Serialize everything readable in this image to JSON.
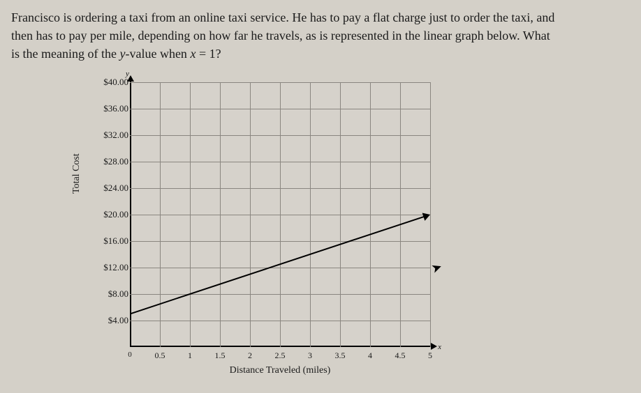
{
  "question": {
    "line1": "Francisco is ordering a taxi from an online taxi service. He has to pay a flat charge just to order the taxi, and",
    "line2": "then has to pay per mile, depending on how far he travels, as is represented in the linear graph below. What",
    "line3_a": "is the meaning of the ",
    "line3_yvar": "y",
    "line3_b": "-value when ",
    "line3_xvar": "x",
    "line3_c": " = 1?"
  },
  "chart": {
    "type": "line",
    "x_axis_title": "Distance Traveled (miles)",
    "y_axis_title": "Total Cost",
    "y_top_symbol": "y",
    "x_right_symbol": "x",
    "origin_label": "0",
    "xlim": [
      0,
      5
    ],
    "ylim": [
      0,
      40
    ],
    "xticks": [
      0.5,
      1,
      1.5,
      2,
      2.5,
      3,
      3.5,
      4,
      4.5,
      5
    ],
    "xtick_labels": [
      "0.5",
      "1",
      "1.5",
      "2",
      "2.5",
      "3",
      "3.5",
      "4",
      "4.5",
      "5"
    ],
    "yticks": [
      4,
      8,
      12,
      16,
      20,
      24,
      28,
      32,
      36,
      40
    ],
    "ytick_labels": [
      "$4.00",
      "$8.00",
      "$12.00",
      "$16.00",
      "$20.00",
      "$24.00",
      "$28.00",
      "$32.00",
      "$36.00",
      "$40.00"
    ],
    "line_points": [
      [
        0,
        5
      ],
      [
        5,
        20
      ]
    ],
    "line_color": "#000000",
    "line_width": 2,
    "grid_color": "#8a8680",
    "background_color": "#d4d0c8",
    "axis_color": "#000000",
    "tick_fontsize": 13,
    "title_fontsize": 14
  }
}
